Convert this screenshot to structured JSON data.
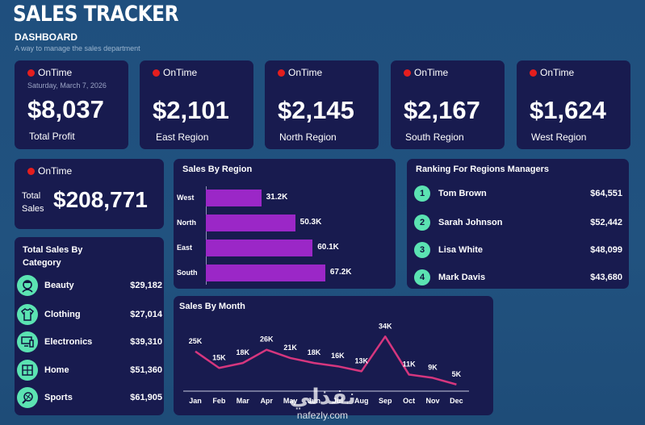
{
  "header": {
    "title": "SALES TRACKER",
    "subtitle": "DASHBOARD",
    "tagline": "A way to manage the sales department"
  },
  "status_label": "OnTime",
  "kpis": [
    {
      "value": "$8,037",
      "label": "Total Profit",
      "date": "Saturday, March 7, 2026"
    },
    {
      "value": "$2,101",
      "label": "East Region"
    },
    {
      "value": "$2,145",
      "label": "North Region"
    },
    {
      "value": "$2,167",
      "label": "South Region"
    },
    {
      "value": "$1,624",
      "label": "West Region"
    }
  ],
  "total_sales": {
    "label": "Total Sales",
    "value": "$208,771"
  },
  "category_panel": {
    "title": "Total Sales By Category",
    "items": [
      {
        "name": "Beauty",
        "value": "$29,182",
        "icon": "beauty-icon"
      },
      {
        "name": "Clothing",
        "value": "$27,014",
        "icon": "clothing-icon"
      },
      {
        "name": "Electronics",
        "value": "$39,310",
        "icon": "electronics-icon"
      },
      {
        "name": "Home",
        "value": "$51,360",
        "icon": "home-icon"
      },
      {
        "name": "Sports",
        "value": "$61,905",
        "icon": "sports-icon"
      }
    ]
  },
  "ranking_panel": {
    "title": "Ranking For Regions Managers",
    "items": [
      {
        "rank": "1",
        "name": "Tom Brown",
        "value": "$64,551"
      },
      {
        "rank": "2",
        "name": "Sarah Johnson",
        "value": "$52,442"
      },
      {
        "rank": "3",
        "name": "Lisa White",
        "value": "$48,099"
      },
      {
        "rank": "4",
        "name": "Mark Davis",
        "value": "$43,680"
      }
    ]
  },
  "watermark": {
    "arabic": "نفذلي",
    "latin": "nafezly.com"
  },
  "colors": {
    "bar": "#9b27c7",
    "line": "#d6367e",
    "accent": "#5be3b2",
    "status_dot": "#e41e1e",
    "card": "#181b4f"
  },
  "chart_data": [
    {
      "type": "bar",
      "title": "Sales By Region",
      "categories": [
        "West",
        "North",
        "East",
        "South"
      ],
      "values": [
        31.2,
        50.3,
        60.1,
        67.2
      ],
      "value_labels": [
        "31.2K",
        "50.3K",
        "60.1K",
        "67.2K"
      ],
      "orientation": "horizontal",
      "xlim": [
        0,
        100
      ]
    },
    {
      "type": "line",
      "title": "Sales By Month",
      "categories": [
        "Jan",
        "Feb",
        "Mar",
        "Apr",
        "May",
        "Jun",
        "Jul",
        "Aug",
        "Sep",
        "Oct",
        "Nov",
        "Dec"
      ],
      "values": [
        25,
        15,
        18,
        26,
        21,
        18,
        16,
        13,
        34,
        11,
        9,
        5
      ],
      "value_labels": [
        "25K",
        "15K",
        "18K",
        "26K",
        "21K",
        "18K",
        "16K",
        "13K",
        "34K",
        "11K",
        "9K",
        "5K"
      ],
      "ylim": [
        0,
        40
      ]
    }
  ]
}
